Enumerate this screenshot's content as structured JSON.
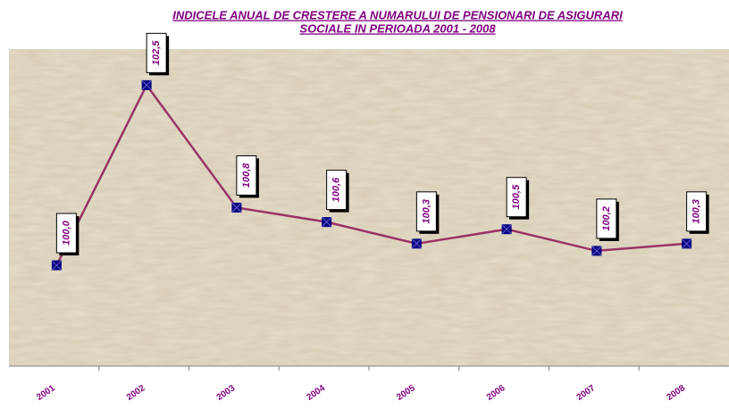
{
  "chart_data": {
    "type": "line",
    "title": [
      "INDICELE ANUAL DE CRESTERE A NUMARULUI DE PENSIONARI DE ASIGURARI",
      "SOCIALE IN PERIOADA 2001 - 2008"
    ],
    "categories": [
      "2001",
      "2002",
      "2003",
      "2004",
      "2005",
      "2006",
      "2007",
      "2008"
    ],
    "values": [
      100.0,
      102.5,
      100.8,
      100.6,
      100.3,
      100.5,
      100.2,
      100.3
    ],
    "value_labels": [
      "100,0",
      "102,5",
      "100,8",
      "100,6",
      "100,3",
      "100,5",
      "100,2",
      "100,3"
    ],
    "color": "#993366",
    "marker_color": "#000080",
    "ylim": [
      98.6,
      103
    ]
  }
}
